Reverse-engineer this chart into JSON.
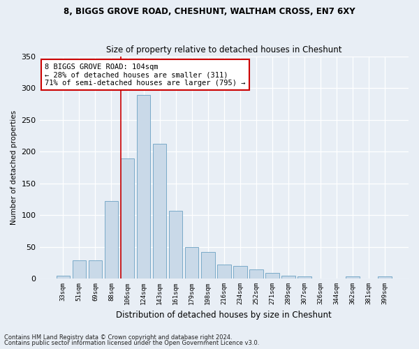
{
  "title1": "8, BIGGS GROVE ROAD, CHESHUNT, WALTHAM CROSS, EN7 6XY",
  "title2": "Size of property relative to detached houses in Cheshunt",
  "xlabel": "Distribution of detached houses by size in Cheshunt",
  "ylabel": "Number of detached properties",
  "categories": [
    "33sqm",
    "51sqm",
    "69sqm",
    "88sqm",
    "106sqm",
    "124sqm",
    "143sqm",
    "161sqm",
    "179sqm",
    "198sqm",
    "216sqm",
    "234sqm",
    "252sqm",
    "271sqm",
    "289sqm",
    "307sqm",
    "326sqm",
    "344sqm",
    "362sqm",
    "381sqm",
    "399sqm"
  ],
  "values": [
    5,
    29,
    29,
    122,
    189,
    290,
    213,
    107,
    50,
    42,
    22,
    20,
    14,
    9,
    4,
    3,
    0,
    0,
    3,
    0,
    3
  ],
  "bar_color": "#c9d9e8",
  "bar_edge_color": "#7aaac8",
  "vline_x": 3.575,
  "vline_color": "#cc0000",
  "annotation_text": "8 BIGGS GROVE ROAD: 104sqm\n← 28% of detached houses are smaller (311)\n71% of semi-detached houses are larger (795) →",
  "annotation_box_color": "#ffffff",
  "annotation_box_edge_color": "#cc0000",
  "ylim": [
    0,
    350
  ],
  "yticks": [
    0,
    50,
    100,
    150,
    200,
    250,
    300,
    350
  ],
  "footer1": "Contains HM Land Registry data © Crown copyright and database right 2024.",
  "footer2": "Contains public sector information licensed under the Open Government Licence v3.0.",
  "bg_color": "#e8eef5",
  "plot_bg_color": "#e8eef5",
  "title1_fontsize": 8.5,
  "title2_fontsize": 8.5
}
